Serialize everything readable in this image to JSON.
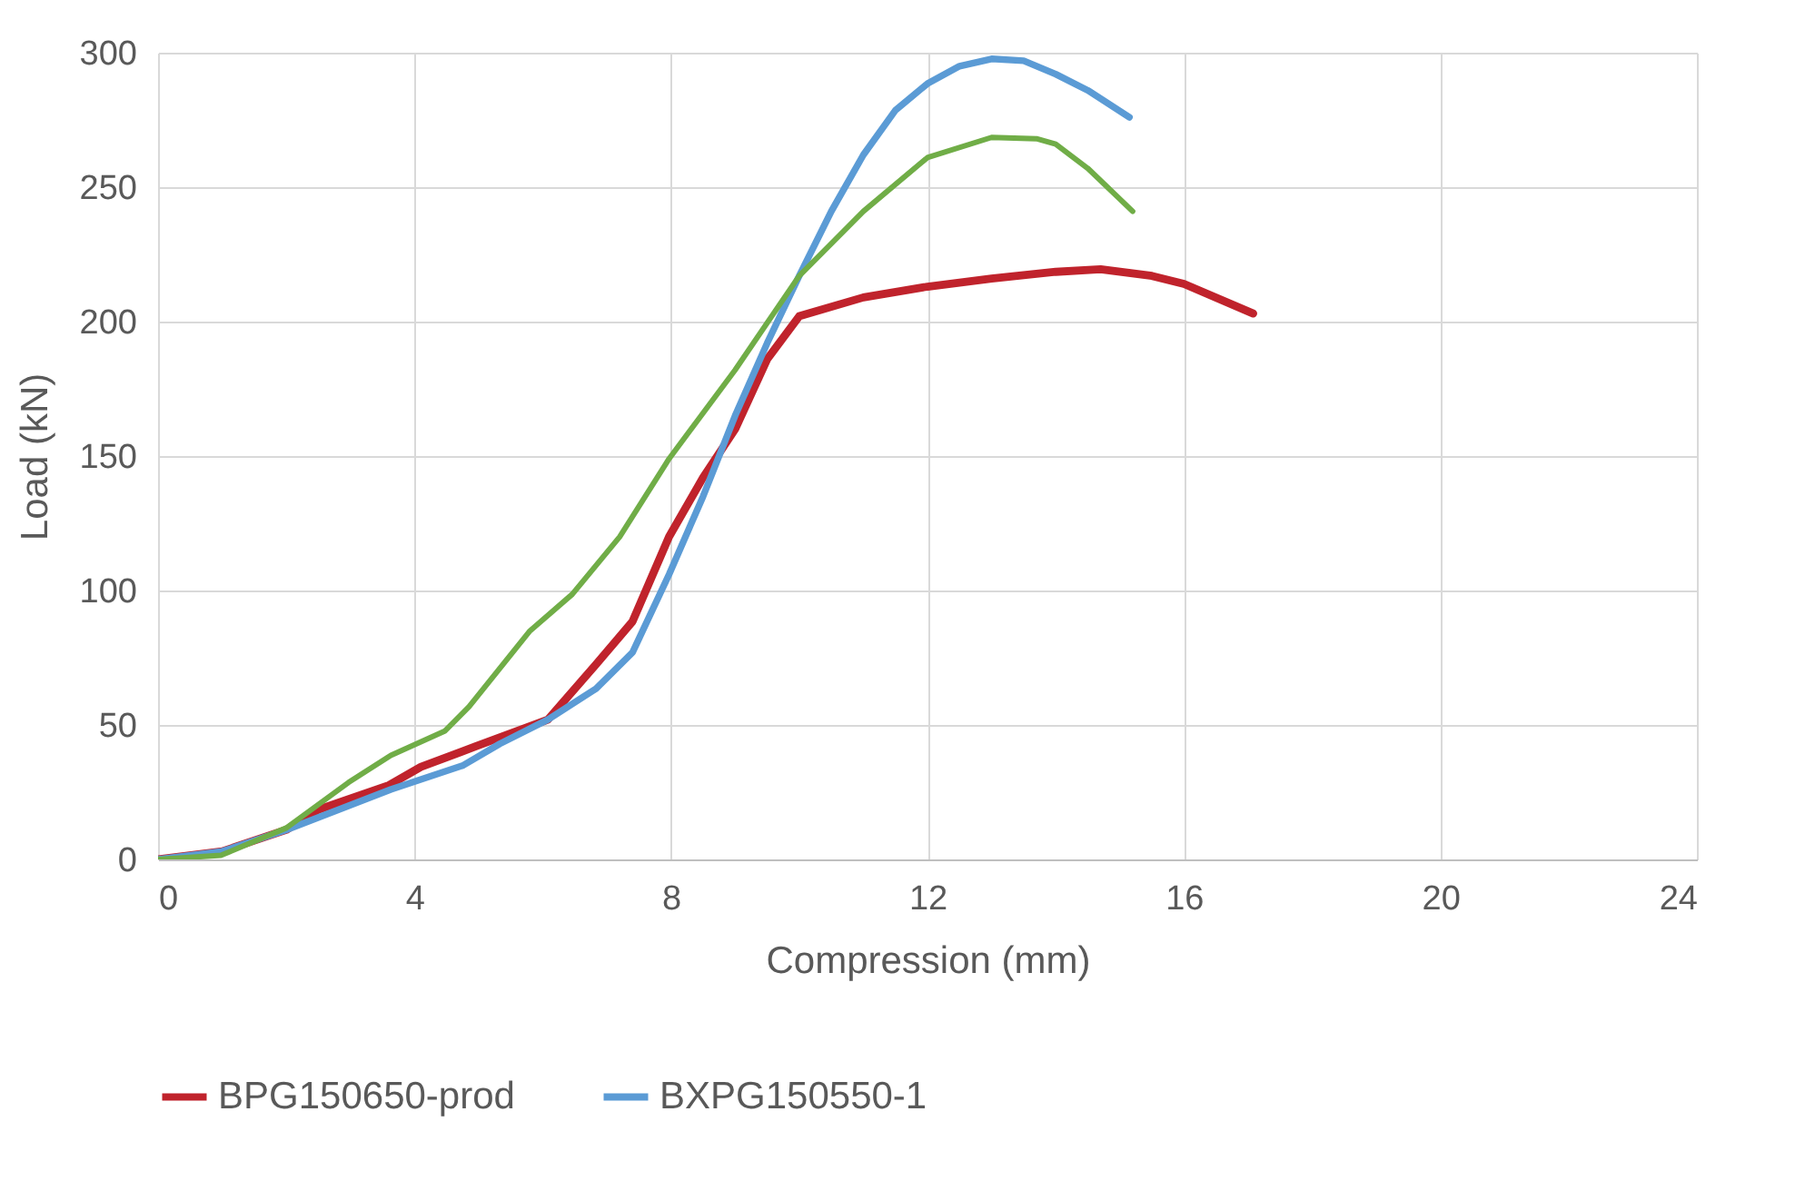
{
  "chart_data": {
    "type": "line",
    "xlabel": "Compression (mm)",
    "ylabel": "Load (kN)",
    "xlim": [
      0,
      24
    ],
    "xticks": [
      0,
      4,
      8,
      12,
      16,
      20,
      24
    ],
    "ylim": [
      0,
      300
    ],
    "yticks": [
      0,
      50,
      100,
      150,
      200,
      250,
      300
    ],
    "grid": true,
    "legend": "bottom",
    "marker": "none",
    "line_style": "solid",
    "series": [
      {
        "name": "BPG150650-prod",
        "color": "#c0232c",
        "x": [
          0,
          1,
          2,
          2.5,
          3.6,
          4.1,
          4.95,
          6.08,
          6.83,
          7.4,
          7.97,
          8.5,
          9,
          9.5,
          10,
          11,
          12,
          13,
          14,
          14.7,
          15.5,
          16,
          17.08
        ],
        "values": [
          0,
          3,
          11,
          18.5,
          27.6,
          34.4,
          42,
          52,
          72.5,
          88.5,
          120,
          142,
          160,
          186,
          202,
          209,
          213,
          216,
          218.5,
          219.5,
          217,
          214,
          203
        ]
      },
      {
        "name": "BXPG150550-1",
        "color": "#5b9bd5",
        "x": [
          0,
          1,
          2,
          3.63,
          4.76,
          5.33,
          6.08,
          6.83,
          7.4,
          7.97,
          8.5,
          9,
          9.5,
          10,
          10.5,
          11,
          11.5,
          12,
          12.5,
          13,
          13.5,
          14,
          14.5,
          15.15
        ],
        "values": [
          0,
          3,
          11,
          26,
          35,
          43,
          52,
          63.5,
          77,
          106,
          135,
          165,
          192,
          217,
          241,
          262,
          278.6,
          288.5,
          295,
          297.7,
          297,
          292,
          286,
          276
        ]
      },
      {
        "color": "#70ad47",
        "x": [
          0,
          0.98,
          2,
          2.97,
          3.63,
          4.47,
          4.85,
          5.8,
          6.46,
          7.2,
          7.97,
          9,
          10,
          11,
          12,
          13,
          13.7,
          14,
          14.5,
          15.2
        ],
        "values": [
          0,
          1.5,
          11.7,
          28.6,
          38.7,
          47.7,
          56.8,
          85,
          98.6,
          120,
          149,
          182,
          217,
          241,
          261,
          268.5,
          268,
          266,
          257,
          241
        ]
      }
    ]
  }
}
